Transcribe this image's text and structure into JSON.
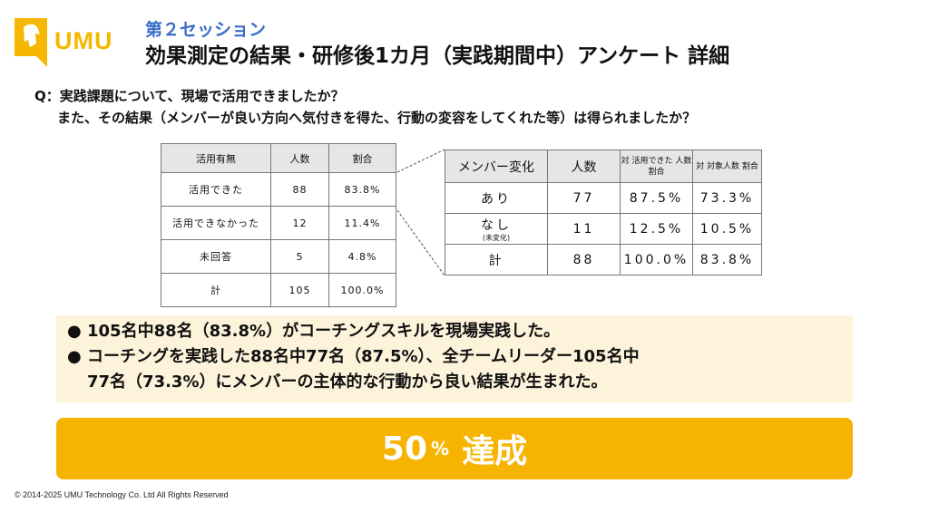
{
  "brand": {
    "logo_text": "UMU",
    "accent_color": "#F5B700"
  },
  "header": {
    "session": "第２セッション",
    "title": "効果測定の結果・研修後1カ月（実践期間中）アンケート 詳細"
  },
  "question": {
    "line1": "Q：実践課題について、現場で活用できましたか？",
    "line2": "また、その結果（メンバーが良い方向へ気付きを得た、行動の変容をしてくれた等）は得られましたか？"
  },
  "table1": {
    "headers": [
      "活用有無",
      "人数",
      "割合"
    ],
    "rows": [
      [
        "活用できた",
        "88",
        "83.8%"
      ],
      [
        "活用できなかった",
        "12",
        "11.4%"
      ],
      [
        "未回答",
        "5",
        "4.8%"
      ],
      [
        "計",
        "105",
        "100.0%"
      ]
    ]
  },
  "table2": {
    "headers": [
      "メンバー変化",
      "人数",
      "対 活用できた 人数割合",
      "対 対象人数 割合"
    ],
    "rows": [
      {
        "label": "あり",
        "sub": "",
        "count": "77",
        "r1": "87.5%",
        "r2": "73.3%"
      },
      {
        "label": "なし",
        "sub": "(未変化)",
        "count": "11",
        "r1": "12.5%",
        "r2": "10.5%"
      },
      {
        "label": "計",
        "sub": "",
        "count": "88",
        "r1": "100.0%",
        "r2": "83.8%"
      }
    ]
  },
  "summary": {
    "bullet": "●",
    "item1": "105名中88名（83.8%）がコーチングスキルを現場実践した。",
    "item2_line1": "コーチングを実践した88名中77名（87.5%）、全チームリーダー105名中",
    "item2_line2": "77名（73.3%）にメンバーの主体的な行動から良い結果が生まれた。"
  },
  "banner": {
    "number": "50",
    "percent": "%",
    "word": "達成",
    "color": "#F6B300"
  },
  "footer": {
    "copyright": "© 2014-2025 UMU Technology Co. Ltd All Rights Reserved"
  }
}
